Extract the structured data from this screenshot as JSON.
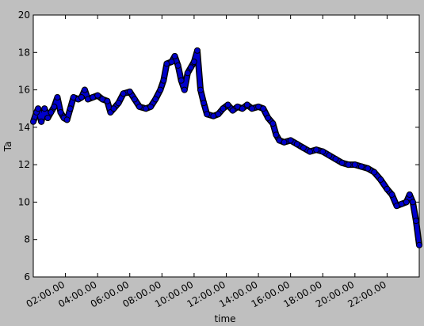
{
  "chart_data": {
    "type": "line",
    "xlabel": "time",
    "ylabel": "Ta",
    "x": [
      0.0,
      0.2,
      0.3,
      0.5,
      0.7,
      0.9,
      1.1,
      1.3,
      1.5,
      1.7,
      1.9,
      2.1,
      2.3,
      2.5,
      2.8,
      3.0,
      3.2,
      3.4,
      3.7,
      4.0,
      4.3,
      4.6,
      4.8,
      5.0,
      5.3,
      5.6,
      6.0,
      6.3,
      6.6,
      7.0,
      7.3,
      7.6,
      7.9,
      8.1,
      8.3,
      8.6,
      8.8,
      9.0,
      9.2,
      9.4,
      9.6,
      9.8,
      10.0,
      10.2,
      10.4,
      10.6,
      10.8,
      11.2,
      11.5,
      11.8,
      12.1,
      12.4,
      12.7,
      13.0,
      13.3,
      13.6,
      14.0,
      14.3,
      14.6,
      14.9,
      15.1,
      15.3,
      15.6,
      16.0,
      16.4,
      16.8,
      17.2,
      17.6,
      18.0,
      18.4,
      18.8,
      19.2,
      19.6,
      20.0,
      20.4,
      20.8,
      21.2,
      21.6,
      22.0,
      22.3,
      22.6,
      22.9,
      23.2,
      23.4,
      23.6,
      23.8,
      24.0
    ],
    "values": [
      14.3,
      14.8,
      15.0,
      14.3,
      15.0,
      14.5,
      14.8,
      15.1,
      15.6,
      14.8,
      14.5,
      14.4,
      15.0,
      15.6,
      15.5,
      15.6,
      16.0,
      15.5,
      15.6,
      15.7,
      15.5,
      15.4,
      14.8,
      15.0,
      15.3,
      15.8,
      15.9,
      15.5,
      15.1,
      15.0,
      15.1,
      15.5,
      16.0,
      16.5,
      17.4,
      17.5,
      17.8,
      17.3,
      16.5,
      16.0,
      16.9,
      17.2,
      17.5,
      18.1,
      16.0,
      15.3,
      14.7,
      14.6,
      14.7,
      15.0,
      15.2,
      14.9,
      15.1,
      15.0,
      15.2,
      15.0,
      15.1,
      15.0,
      14.5,
      14.2,
      13.6,
      13.3,
      13.2,
      13.3,
      13.1,
      12.9,
      12.7,
      12.8,
      12.7,
      12.5,
      12.3,
      12.1,
      12.0,
      12.0,
      11.9,
      11.8,
      11.6,
      11.2,
      10.7,
      10.4,
      9.8,
      9.9,
      10.0,
      10.4,
      10.0,
      9.0,
      7.7
    ],
    "color": "#0000cc",
    "edgecolor": "#000000",
    "xlim": [
      0,
      24
    ],
    "ylim": [
      6,
      20
    ],
    "xticks": [
      {
        "value": 2,
        "label": "02:00.00"
      },
      {
        "value": 4,
        "label": "04:00.00"
      },
      {
        "value": 6,
        "label": "06:00.00"
      },
      {
        "value": 8,
        "label": "08:00.00"
      },
      {
        "value": 10,
        "label": "10:00.00"
      },
      {
        "value": 12,
        "label": "12:00.00"
      },
      {
        "value": 14,
        "label": "14:00.00"
      },
      {
        "value": 16,
        "label": "16:00.00"
      },
      {
        "value": 18,
        "label": "18:00.00"
      },
      {
        "value": 20,
        "label": "20:00.00"
      },
      {
        "value": 22,
        "label": "22:00.00"
      }
    ],
    "yticks": [
      6,
      8,
      10,
      12,
      14,
      16,
      18,
      20
    ],
    "grid": false
  }
}
